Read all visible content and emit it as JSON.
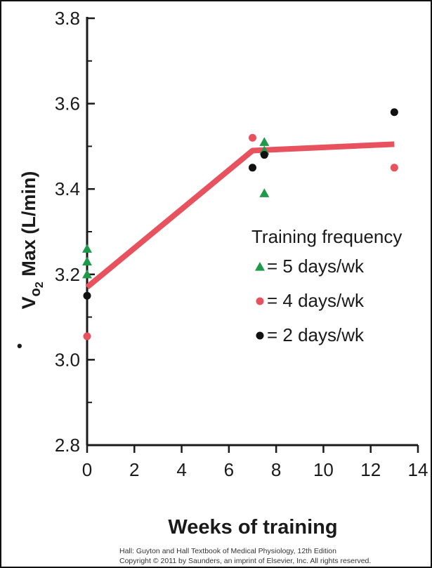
{
  "chart_data": {
    "type": "scatter",
    "title": "",
    "xlabel": "Weeks of training",
    "ylabel_parts": {
      "base": "V",
      "dot": "•",
      "sub_main": "o",
      "sub": "2",
      "rest": " Max (L/min)"
    },
    "xlim": [
      0,
      14
    ],
    "ylim": [
      2.8,
      3.8
    ],
    "xticks": [
      0,
      2,
      4,
      6,
      8,
      10,
      12,
      14
    ],
    "yticks": [
      2.8,
      3.0,
      3.2,
      3.4,
      3.6,
      3.8
    ],
    "xtick_labels": [
      "0",
      "2",
      "4",
      "6",
      "8",
      "10",
      "12",
      "14"
    ],
    "ytick_labels": [
      "2.8",
      "3.0",
      "3.2",
      "3.4",
      "3.6",
      "3.8"
    ],
    "grid": false,
    "legend": {
      "title": "Training frequency",
      "placement": "right-middle",
      "entries": [
        {
          "label": "= 5 days/wk",
          "marker": "triangle",
          "color": "#1e9a4a"
        },
        {
          "label": "= 4 days/wk",
          "marker": "circle",
          "color": "#e8525f"
        },
        {
          "label": "= 2 days/wk",
          "marker": "circle",
          "color": "#111111"
        }
      ]
    },
    "series": [
      {
        "name": "5 days/wk",
        "marker": "triangle",
        "color": "#1e9a4a",
        "points": [
          [
            0,
            3.26
          ],
          [
            0,
            3.23
          ],
          [
            0,
            3.2
          ],
          [
            7.5,
            3.51
          ],
          [
            7.5,
            3.49
          ],
          [
            7.5,
            3.39
          ]
        ]
      },
      {
        "name": "4 days/wk",
        "marker": "circle",
        "color": "#e8525f",
        "points": [
          [
            0,
            3.055
          ],
          [
            7,
            3.52
          ],
          [
            13,
            3.45
          ]
        ]
      },
      {
        "name": "2 days/wk",
        "marker": "circle",
        "color": "#111111",
        "points": [
          [
            0,
            3.15
          ],
          [
            7,
            3.45
          ],
          [
            7.5,
            3.48
          ],
          [
            13,
            3.58
          ]
        ]
      }
    ],
    "trend_line": {
      "color": "#e8525f",
      "points": [
        [
          0,
          3.17
        ],
        [
          7,
          3.49
        ],
        [
          13,
          3.505
        ]
      ]
    }
  },
  "credit": {
    "line1": "Hall: Guyton and Hall Textbook of Medical Physiology, 12th Edition",
    "line2": "Copyright © 2011 by Saunders, an imprint of Elsevier, Inc. All rights reserved."
  }
}
